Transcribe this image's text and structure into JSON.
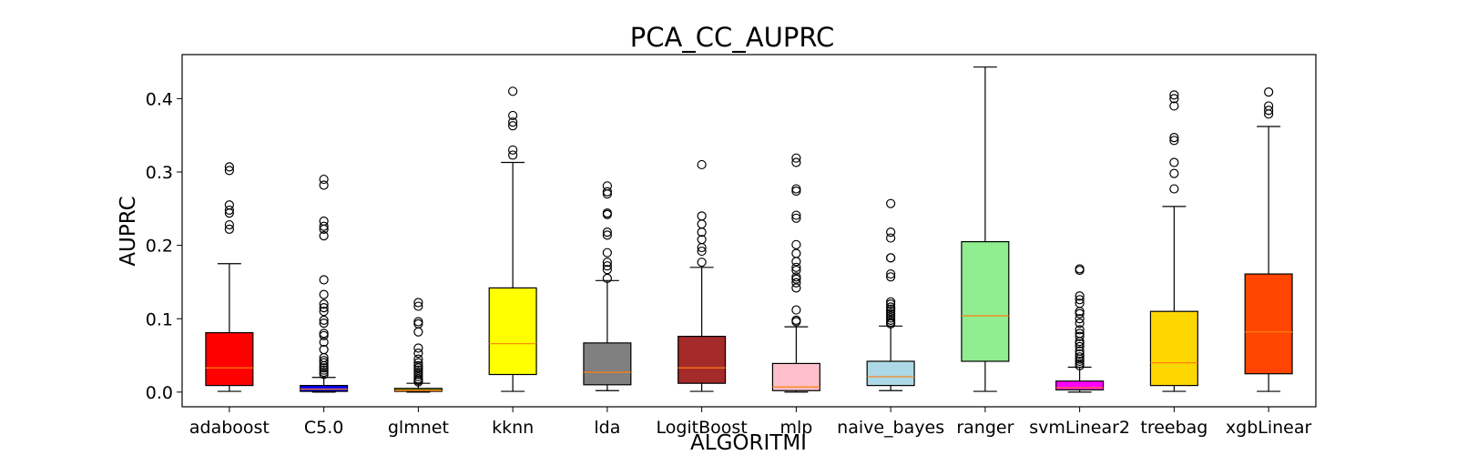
{
  "chart_data": {
    "type": "box",
    "title": "PCA_CC_AUPRC",
    "xlabel": "ALGORITMI",
    "ylabel": "AUPRC",
    "ylim": [
      -0.02,
      0.46
    ],
    "yticks": [
      0.0,
      0.1,
      0.2,
      0.3,
      0.4
    ],
    "ytick_labels": [
      "0.0",
      "0.1",
      "0.2",
      "0.3",
      "0.4"
    ],
    "grid": false,
    "legend": "none",
    "median_color": "#ff7f0e",
    "series": [
      {
        "category": "adaboost",
        "color": "#ff0000",
        "whisker_low": 0.001,
        "q1": 0.009,
        "median": 0.033,
        "q3": 0.081,
        "whisker_high": 0.175,
        "outliers": [
          0.307,
          0.302,
          0.255,
          0.248,
          0.244,
          0.228,
          0.222
        ]
      },
      {
        "category": "C5.0",
        "color": "#0000ff",
        "whisker_low": 0.0,
        "q1": 0.001,
        "median": 0.004,
        "q3": 0.009,
        "whisker_high": 0.02,
        "outliers": [
          0.29,
          0.282,
          0.233,
          0.226,
          0.222,
          0.213,
          0.153,
          0.133,
          0.12,
          0.115,
          0.11,
          0.098,
          0.094,
          0.08,
          0.077,
          0.068,
          0.058,
          0.047,
          0.043,
          0.04,
          0.036,
          0.033,
          0.03,
          0.027,
          0.024
        ]
      },
      {
        "category": "glmnet",
        "color": "#808000",
        "whisker_low": 0.0,
        "q1": 0.001,
        "median": 0.002,
        "q3": 0.005,
        "whisker_high": 0.012,
        "outliers": [
          0.122,
          0.117,
          0.096,
          0.093,
          0.082,
          0.06,
          0.053,
          0.045,
          0.04,
          0.036,
          0.033,
          0.03,
          0.027,
          0.024,
          0.021,
          0.018,
          0.016,
          0.014
        ]
      },
      {
        "category": "kknn",
        "color": "#ffff00",
        "whisker_low": 0.001,
        "q1": 0.024,
        "median": 0.066,
        "q3": 0.142,
        "whisker_high": 0.313,
        "outliers": [
          0.41,
          0.377,
          0.368,
          0.363,
          0.33,
          0.323
        ]
      },
      {
        "category": "lda",
        "color": "#808080",
        "whisker_low": 0.002,
        "q1": 0.01,
        "median": 0.027,
        "q3": 0.067,
        "whisker_high": 0.152,
        "outliers": [
          0.281,
          0.273,
          0.27,
          0.244,
          0.242,
          0.218,
          0.214,
          0.19,
          0.177,
          0.172,
          0.167,
          0.155
        ]
      },
      {
        "category": "LogitBoost",
        "color": "#a52a2a",
        "whisker_low": 0.001,
        "q1": 0.012,
        "median": 0.033,
        "q3": 0.076,
        "whisker_high": 0.17,
        "outliers": [
          0.31,
          0.24,
          0.229,
          0.218,
          0.208,
          0.197,
          0.192,
          0.177
        ]
      },
      {
        "category": "mlp",
        "color": "#ffc0cb",
        "whisker_low": 0.0,
        "q1": 0.002,
        "median": 0.007,
        "q3": 0.039,
        "whisker_high": 0.089,
        "outliers": [
          0.319,
          0.313,
          0.277,
          0.274,
          0.241,
          0.237,
          0.201,
          0.189,
          0.178,
          0.17,
          0.166,
          0.157,
          0.154,
          0.149,
          0.142,
          0.112,
          0.098,
          0.096
        ]
      },
      {
        "category": "naive_bayes",
        "color": "#add8e6",
        "whisker_low": 0.002,
        "q1": 0.009,
        "median": 0.021,
        "q3": 0.042,
        "whisker_high": 0.09,
        "outliers": [
          0.257,
          0.218,
          0.21,
          0.183,
          0.183,
          0.161,
          0.157,
          0.123,
          0.12,
          0.116,
          0.113,
          0.11,
          0.107,
          0.104,
          0.101,
          0.098,
          0.095,
          0.093
        ]
      },
      {
        "category": "ranger",
        "color": "#90ee90",
        "whisker_low": 0.001,
        "q1": 0.042,
        "median": 0.104,
        "q3": 0.205,
        "whisker_high": 0.443,
        "outliers": []
      },
      {
        "category": "svmLinear2",
        "color": "#ff00ff",
        "whisker_low": 0.0,
        "q1": 0.003,
        "median": 0.006,
        "q3": 0.015,
        "whisker_high": 0.034,
        "outliers": [
          0.168,
          0.166,
          0.131,
          0.126,
          0.121,
          0.11,
          0.107,
          0.1,
          0.094,
          0.085,
          0.08,
          0.076,
          0.069,
          0.066,
          0.062,
          0.056,
          0.052,
          0.048,
          0.045,
          0.042,
          0.039,
          0.036
        ]
      },
      {
        "category": "treebag",
        "color": "#ffd700",
        "whisker_low": 0.001,
        "q1": 0.009,
        "median": 0.04,
        "q3": 0.11,
        "whisker_high": 0.253,
        "outliers": [
          0.405,
          0.4,
          0.39,
          0.347,
          0.343,
          0.313,
          0.298,
          0.277
        ]
      },
      {
        "category": "xgbLinear",
        "color": "#ff4500",
        "whisker_low": 0.001,
        "q1": 0.025,
        "median": 0.082,
        "q3": 0.161,
        "whisker_high": 0.362,
        "outliers": [
          0.409,
          0.39,
          0.384,
          0.379
        ]
      }
    ]
  }
}
